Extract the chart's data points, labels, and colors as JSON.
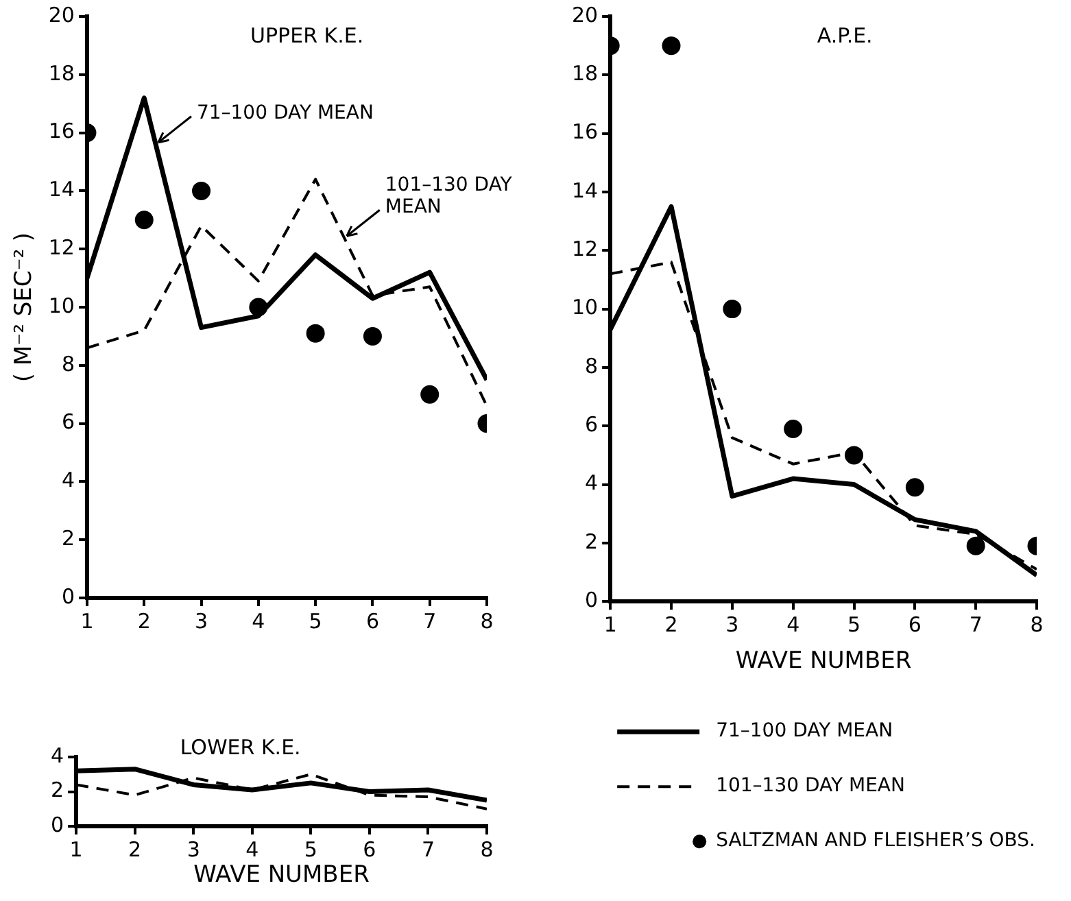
{
  "chart_data": [
    {
      "type": "line",
      "title": "UPPER K.E.",
      "ylabel": "( M⁻² SEC⁻² )",
      "x": [
        1,
        2,
        3,
        4,
        5,
        6,
        7,
        8
      ],
      "xlim": [
        1,
        8
      ],
      "xticks": [
        1,
        2,
        3,
        4,
        5,
        6,
        7,
        8
      ],
      "ylim": [
        0,
        20
      ],
      "yticks": [
        0,
        2,
        4,
        6,
        8,
        10,
        12,
        14,
        16,
        18,
        20
      ],
      "grid": false,
      "series": [
        {
          "color": "#000000",
          "line_style": "solid",
          "marker": "none",
          "values": [
            11,
            17.2,
            9.3,
            9.7,
            11.8,
            10.3,
            11.2,
            7.5
          ]
        },
        {
          "color": "#000000",
          "line_style": "dashed",
          "marker": "none",
          "values": [
            8.6,
            9.2,
            12.8,
            10.9,
            14.4,
            10.4,
            10.7,
            6.6
          ]
        },
        {
          "type": "scatter",
          "color": "#000000",
          "marker": "circle",
          "values": [
            16,
            13,
            14,
            10,
            9.1,
            9,
            7,
            6
          ]
        }
      ],
      "annotations": [
        {
          "text": "71–100 DAY MEAN",
          "x": 2.2,
          "y": 15.62
        },
        {
          "text": "101–130 DAY MEAN",
          "x": 5.5,
          "y": 12.4
        }
      ]
    },
    {
      "type": "line",
      "title": "A.P.E.",
      "xlabel": "WAVE NUMBER",
      "x": [
        1,
        2,
        3,
        4,
        5,
        6,
        7,
        8
      ],
      "xlim": [
        1,
        8
      ],
      "xticks": [
        1,
        2,
        3,
        4,
        5,
        6,
        7,
        8
      ],
      "ylim": [
        0,
        20
      ],
      "yticks": [
        0,
        2,
        4,
        6,
        8,
        10,
        12,
        14,
        16,
        18,
        20
      ],
      "grid": false,
      "legend": "bottom",
      "series": [
        {
          "name": "71–100 DAY MEAN",
          "color": "#000000",
          "line_style": "solid",
          "marker": "none",
          "values": [
            9.3,
            13.5,
            3.6,
            4.2,
            4.0,
            2.8,
            2.4,
            0.9
          ]
        },
        {
          "name": "101–130 DAY MEAN",
          "color": "#000000",
          "line_style": "dashed",
          "marker": "none",
          "values": [
            11.2,
            11.6,
            5.6,
            4.7,
            5.1,
            2.6,
            2.3,
            1.1
          ]
        },
        {
          "name": "SALTZMAN AND FLEISHER’S OBS.",
          "type": "scatter",
          "color": "#000000",
          "marker": "circle",
          "values": [
            19,
            19,
            10,
            5.9,
            5,
            3.9,
            1.9,
            1.9
          ]
        }
      ]
    },
    {
      "type": "line",
      "title": "LOWER K.E.",
      "xlabel": "WAVE NUMBER",
      "x": [
        1,
        2,
        3,
        4,
        5,
        6,
        7,
        8
      ],
      "xlim": [
        1,
        8
      ],
      "xticks": [
        1,
        2,
        3,
        4,
        5,
        6,
        7,
        8
      ],
      "ylim": [
        0,
        4
      ],
      "yticks": [
        0,
        2,
        4
      ],
      "grid": false,
      "series": [
        {
          "color": "#000000",
          "line_style": "solid",
          "marker": "none",
          "values": [
            3.2,
            3.3,
            2.4,
            2.1,
            2.5,
            2.0,
            2.1,
            1.5
          ]
        },
        {
          "color": "#000000",
          "line_style": "dashed",
          "marker": "none",
          "values": [
            2.4,
            1.8,
            2.8,
            2.1,
            3.0,
            1.8,
            1.7,
            1.0
          ]
        }
      ]
    }
  ]
}
